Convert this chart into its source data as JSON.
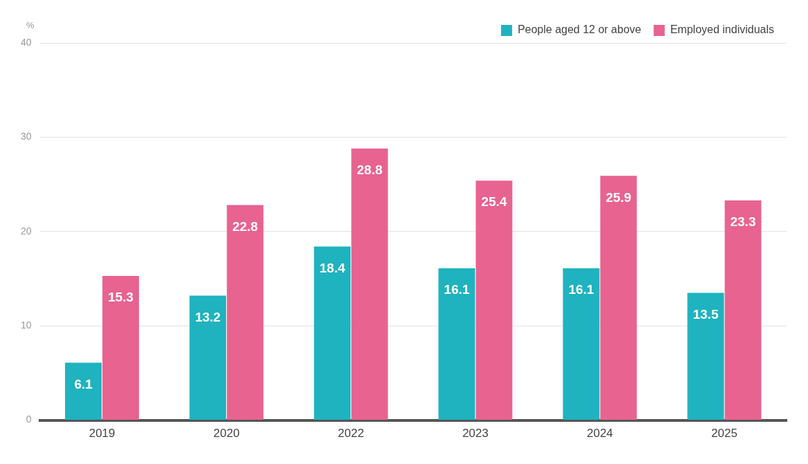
{
  "chart_data": {
    "type": "bar",
    "ylabel": "%",
    "categories": [
      "2019",
      "2020",
      "2022",
      "2023",
      "2024",
      "2025"
    ],
    "series": [
      {
        "name": "People aged 12 or above",
        "color": "#1fb3bf",
        "values": [
          6.1,
          13.2,
          18.4,
          16.1,
          16.1,
          13.5
        ]
      },
      {
        "name": "Employed individuals",
        "color": "#e8638f",
        "values": [
          15.3,
          22.8,
          28.8,
          25.4,
          25.9,
          23.3
        ]
      }
    ],
    "ylim": [
      0,
      40
    ],
    "yticks": [
      0,
      10,
      20,
      30,
      40
    ],
    "grid": "y",
    "legend": "top right",
    "data_labels": true
  }
}
